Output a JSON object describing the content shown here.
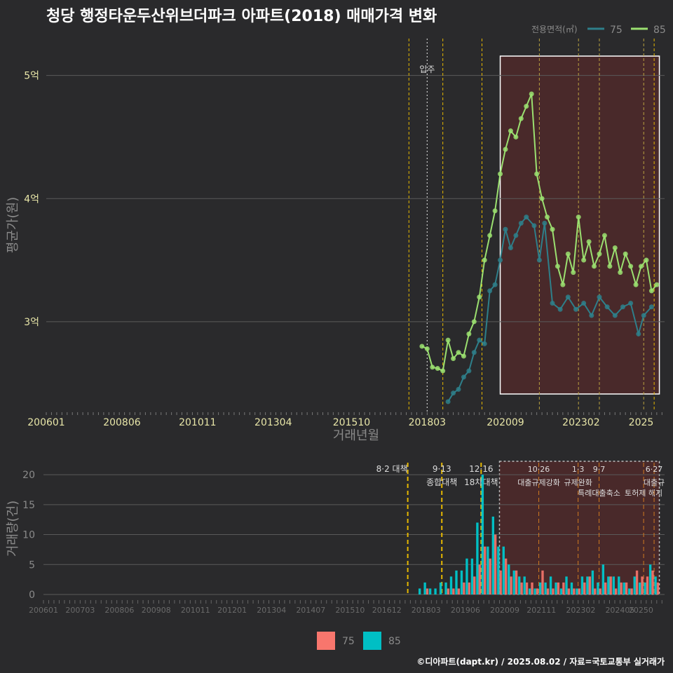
{
  "title": "청당 행정타운두산위브더파크 아파트(2018) 매매가격 변화",
  "footer": "©디아파트(dapt.kr) / 2025.08.02 / 자료=국토교통부 실거래가",
  "colors": {
    "background": "#2a2a2c",
    "series_75_line": "#2e7f8a",
    "series_85_line": "#9be070",
    "bar_75": "#f8766d",
    "bar_85": "#00bfc4",
    "grid": "#5a5a5a",
    "policy_line": "#e6b800",
    "highlight_fill": "#5a2a2a",
    "marker_x": "#cc0000"
  },
  "chart_data": [
    {
      "type": "line",
      "title": "청당 행정타운두산위브더파크 아파트(2018) 매매가격 변화",
      "xlabel": "거래년월",
      "ylabel": "평균가(원)",
      "x_ticks": [
        "200601",
        "200806",
        "201011",
        "201304",
        "201510",
        "201803",
        "202009",
        "202302",
        "2025"
      ],
      "y_ticks": [
        "3억",
        "4억",
        "5억"
      ],
      "ylim": [
        2.27,
        5.3
      ],
      "y_unit": "억",
      "legend": {
        "title": "전용면적(㎡)",
        "position": "top-right",
        "entries": [
          "75",
          "85"
        ]
      },
      "occupancy_label": "입주",
      "series": [
        {
          "name": "75",
          "points": [
            [
              "2018-11",
              2.35
            ],
            [
              "2019-01",
              2.42
            ],
            [
              "2019-03",
              2.45
            ],
            [
              "2019-05",
              2.55
            ],
            [
              "2019-07",
              2.6
            ],
            [
              "2019-09",
              2.75
            ],
            [
              "2019-11",
              2.85
            ],
            [
              "2020-01",
              2.82
            ],
            [
              "2020-03",
              3.25
            ],
            [
              "2020-05",
              3.3
            ],
            [
              "2020-07",
              3.5
            ],
            [
              "2020-09",
              3.75
            ],
            [
              "2020-11",
              3.6
            ],
            [
              "2021-01",
              3.7
            ],
            [
              "2021-03",
              3.8
            ],
            [
              "2021-05",
              3.85
            ],
            [
              "2021-08",
              3.78
            ],
            [
              "2021-10",
              3.5
            ],
            [
              "2021-12",
              3.8
            ],
            [
              "2022-03",
              3.15
            ],
            [
              "2022-06",
              3.1
            ],
            [
              "2022-09",
              3.2
            ],
            [
              "2022-12",
              3.1
            ],
            [
              "2023-03",
              3.15
            ],
            [
              "2023-06",
              3.05
            ],
            [
              "2023-09",
              3.2
            ],
            [
              "2023-12",
              3.12
            ],
            [
              "2024-03",
              3.05
            ],
            [
              "2024-06",
              3.12
            ],
            [
              "2024-09",
              3.15
            ],
            [
              "2024-12",
              2.9
            ],
            [
              "2025-02",
              3.05
            ],
            [
              "2025-05",
              3.12
            ]
          ]
        },
        {
          "name": "85",
          "points": [
            [
              "2018-01",
              2.8
            ],
            [
              "2018-03",
              2.78
            ],
            [
              "2018-05",
              2.63
            ],
            [
              "2018-07",
              2.62
            ],
            [
              "2018-09",
              2.6
            ],
            [
              "2018-11",
              2.85
            ],
            [
              "2019-01",
              2.7
            ],
            [
              "2019-03",
              2.75
            ],
            [
              "2019-05",
              2.72
            ],
            [
              "2019-07",
              2.9
            ],
            [
              "2019-09",
              3.0
            ],
            [
              "2019-11",
              3.2
            ],
            [
              "2020-01",
              3.5
            ],
            [
              "2020-03",
              3.7
            ],
            [
              "2020-05",
              3.9
            ],
            [
              "2020-07",
              4.2
            ],
            [
              "2020-09",
              4.4
            ],
            [
              "2020-11",
              4.55
            ],
            [
              "2021-01",
              4.5
            ],
            [
              "2021-03",
              4.65
            ],
            [
              "2021-05",
              4.75
            ],
            [
              "2021-07",
              4.85
            ],
            [
              "2021-09",
              4.2
            ],
            [
              "2021-11",
              4.0
            ],
            [
              "2022-01",
              3.85
            ],
            [
              "2022-03",
              3.75
            ],
            [
              "2022-05",
              3.45
            ],
            [
              "2022-07",
              3.3
            ],
            [
              "2022-09",
              3.55
            ],
            [
              "2022-11",
              3.4
            ],
            [
              "2023-01",
              3.85
            ],
            [
              "2023-03",
              3.5
            ],
            [
              "2023-05",
              3.65
            ],
            [
              "2023-07",
              3.45
            ],
            [
              "2023-09",
              3.55
            ],
            [
              "2023-11",
              3.7
            ],
            [
              "2024-01",
              3.45
            ],
            [
              "2024-03",
              3.6
            ],
            [
              "2024-05",
              3.4
            ],
            [
              "2024-07",
              3.55
            ],
            [
              "2024-09",
              3.45
            ],
            [
              "2024-11",
              3.3
            ],
            [
              "2025-01",
              3.45
            ],
            [
              "2025-03",
              3.5
            ],
            [
              "2025-05",
              3.25
            ],
            [
              "2025-07",
              3.3
            ]
          ]
        }
      ]
    },
    {
      "type": "bar",
      "ylabel": "거래량(건)",
      "x_ticks": [
        "200601",
        "200703",
        "200806",
        "200908",
        "201011",
        "201201",
        "201304",
        "201407",
        "201510",
        "201612",
        "201803",
        "201906",
        "202009",
        "202111",
        "202302",
        "202405",
        "20250"
      ],
      "y_ticks": [
        "0",
        "5",
        "10",
        "15",
        "20"
      ],
      "ylim": [
        0,
        22
      ],
      "legend": {
        "position": "bottom",
        "entries": [
          "75",
          "85"
        ]
      },
      "policy_annotations": [
        {
          "date": "8·2 대책",
          "x": "2017-08"
        },
        {
          "date": "9·13",
          "label": "종합대책",
          "x": "2018-09"
        },
        {
          "date": "12·16",
          "label": "18차대책",
          "x": "2019-12"
        },
        {
          "date": "10·26",
          "label": "대출규제강화",
          "x": "2021-10"
        },
        {
          "date": "1·3",
          "label": "규제완화",
          "x": "2023-01"
        },
        {
          "date": "9·7",
          "label": "특례대출축소",
          "x": "2023-09"
        },
        {
          "label": "토허제 해지",
          "x": "2025-02"
        },
        {
          "date": "6·27",
          "label": "대출규",
          "x": "2025-06"
        }
      ],
      "months": [
        "2018-01",
        "2018-03",
        "2018-05",
        "2018-07",
        "2018-09",
        "2018-11",
        "2019-01",
        "2019-03",
        "2019-05",
        "2019-07",
        "2019-09",
        "2019-11",
        "2020-01",
        "2020-03",
        "2020-05",
        "2020-07",
        "2020-09",
        "2020-11",
        "2021-01",
        "2021-03",
        "2021-05",
        "2021-07",
        "2021-09",
        "2021-11",
        "2022-01",
        "2022-03",
        "2022-05",
        "2022-07",
        "2022-09",
        "2022-11",
        "2023-01",
        "2023-03",
        "2023-05",
        "2023-07",
        "2023-09",
        "2023-11",
        "2024-01",
        "2024-03",
        "2024-05",
        "2024-07",
        "2024-09",
        "2024-11",
        "2025-01",
        "2025-03",
        "2025-05",
        "2025-07"
      ],
      "series": [
        {
          "name": "75",
          "values": [
            0,
            1,
            0,
            0,
            0,
            1,
            1,
            1,
            2,
            2,
            3,
            5,
            8,
            6,
            10,
            4,
            6,
            3,
            4,
            2,
            2,
            2,
            1,
            4,
            1,
            1,
            2,
            2,
            1,
            1,
            1,
            2,
            3,
            1,
            1,
            2,
            3,
            1,
            2,
            2,
            1,
            4,
            3,
            3,
            4,
            2
          ]
        },
        {
          "name": "85",
          "values": [
            1,
            2,
            1,
            1,
            2,
            2,
            3,
            4,
            4,
            6,
            6,
            12,
            20,
            8,
            13,
            8,
            8,
            5,
            4,
            3,
            3,
            1,
            1,
            2,
            2,
            3,
            2,
            1,
            3,
            2,
            1,
            3,
            3,
            4,
            2,
            5,
            3,
            3,
            3,
            2,
            1,
            3,
            2,
            2,
            5,
            3
          ]
        }
      ]
    }
  ]
}
